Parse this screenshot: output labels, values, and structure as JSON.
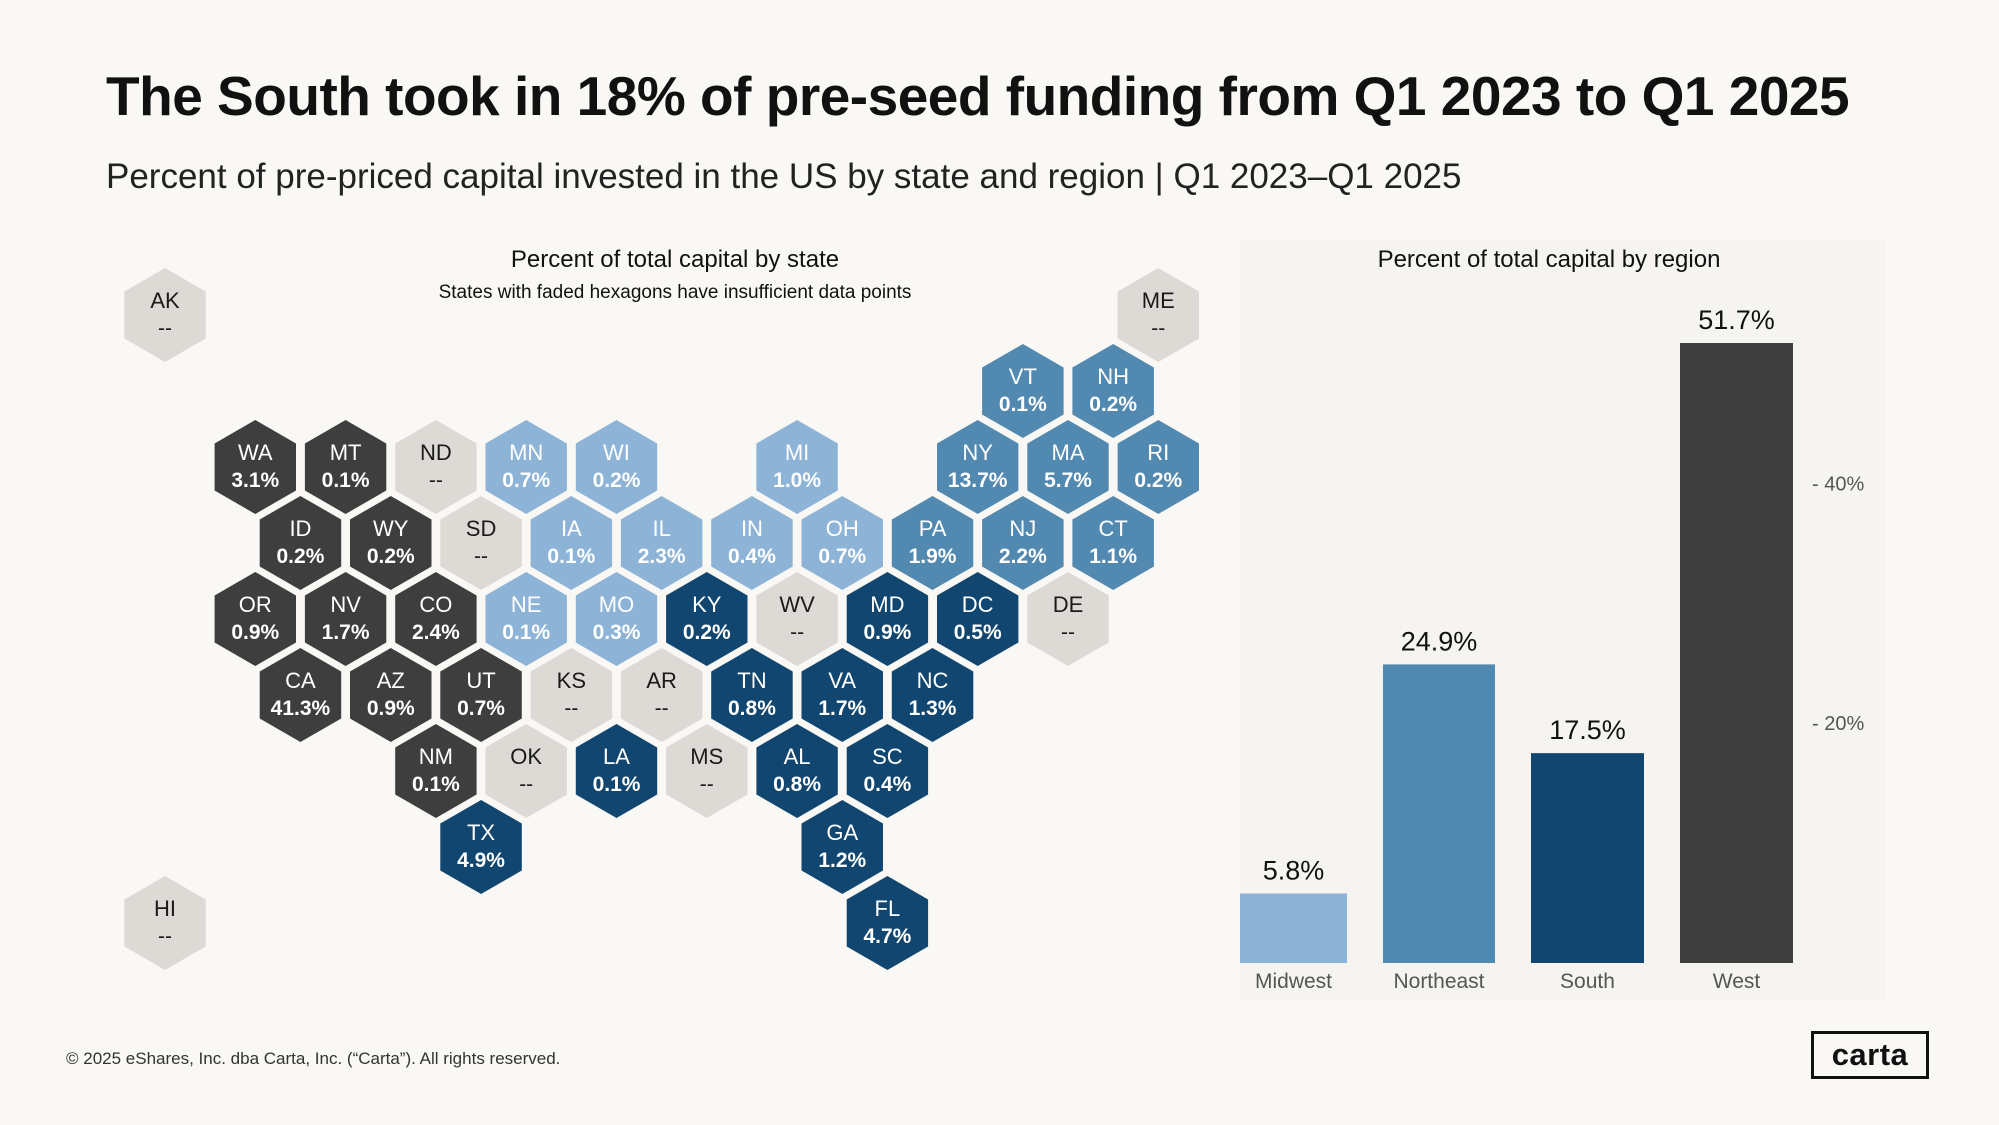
{
  "header": {
    "title": "The South took in 18% of pre-seed funding from Q1 2023 to Q1 2025",
    "subtitle": "Percent of pre-priced capital invested in the US by state and region | Q1 2023–Q1 2025"
  },
  "colors": {
    "West": "#3e3e3e",
    "Midwest": "#8db3d7",
    "Northeast": "#5289b1",
    "South": "#10466f",
    "Insufficient": "#dddad5",
    "background": "#faf8f4"
  },
  "footer": {
    "copyright": "© 2025 eShares, Inc. dba Carta, Inc. (“Carta”). All rights reserved.",
    "logo": "carta"
  },
  "chart_data": [
    {
      "type": "table",
      "title": "Percent of total capital by state",
      "subtitle": "States with faded hexagons have insufficient data points",
      "states": [
        {
          "abbr": "AK",
          "label": "--",
          "value": null,
          "region": "Insufficient",
          "row": 0,
          "col": 0
        },
        {
          "abbr": "ME",
          "label": "--",
          "value": null,
          "region": "Insufficient",
          "row": 0,
          "col": 11
        },
        {
          "abbr": "VT",
          "label": "0.1%",
          "value": 0.1,
          "region": "Northeast",
          "row": 1,
          "col": 9.5
        },
        {
          "abbr": "NH",
          "label": "0.2%",
          "value": 0.2,
          "region": "Northeast",
          "row": 1,
          "col": 10.5
        },
        {
          "abbr": "WA",
          "label": "3.1%",
          "value": 3.1,
          "region": "West",
          "row": 2,
          "col": 1
        },
        {
          "abbr": "MT",
          "label": "0.1%",
          "value": 0.1,
          "region": "West",
          "row": 2,
          "col": 2
        },
        {
          "abbr": "ND",
          "label": "--",
          "value": null,
          "region": "Insufficient",
          "row": 2,
          "col": 3
        },
        {
          "abbr": "MN",
          "label": "0.7%",
          "value": 0.7,
          "region": "Midwest",
          "row": 2,
          "col": 4
        },
        {
          "abbr": "WI",
          "label": "0.2%",
          "value": 0.2,
          "region": "Midwest",
          "row": 2,
          "col": 5
        },
        {
          "abbr": "MI",
          "label": "1.0%",
          "value": 1.0,
          "region": "Midwest",
          "row": 2,
          "col": 7
        },
        {
          "abbr": "NY",
          "label": "13.7%",
          "value": 13.7,
          "region": "Northeast",
          "row": 2,
          "col": 9
        },
        {
          "abbr": "MA",
          "label": "5.7%",
          "value": 5.7,
          "region": "Northeast",
          "row": 2,
          "col": 10
        },
        {
          "abbr": "RI",
          "label": "0.2%",
          "value": 0.2,
          "region": "Northeast",
          "row": 2,
          "col": 11
        },
        {
          "abbr": "ID",
          "label": "0.2%",
          "value": 0.2,
          "region": "West",
          "row": 3,
          "col": 1.5
        },
        {
          "abbr": "WY",
          "label": "0.2%",
          "value": 0.2,
          "region": "West",
          "row": 3,
          "col": 2.5
        },
        {
          "abbr": "SD",
          "label": "--",
          "value": null,
          "region": "Insufficient",
          "row": 3,
          "col": 3.5
        },
        {
          "abbr": "IA",
          "label": "0.1%",
          "value": 0.1,
          "region": "Midwest",
          "row": 3,
          "col": 4.5
        },
        {
          "abbr": "IL",
          "label": "2.3%",
          "value": 2.3,
          "region": "Midwest",
          "row": 3,
          "col": 5.5
        },
        {
          "abbr": "IN",
          "label": "0.4%",
          "value": 0.4,
          "region": "Midwest",
          "row": 3,
          "col": 6.5
        },
        {
          "abbr": "OH",
          "label": "0.7%",
          "value": 0.7,
          "region": "Midwest",
          "row": 3,
          "col": 7.5
        },
        {
          "abbr": "PA",
          "label": "1.9%",
          "value": 1.9,
          "region": "Northeast",
          "row": 3,
          "col": 8.5
        },
        {
          "abbr": "NJ",
          "label": "2.2%",
          "value": 2.2,
          "region": "Northeast",
          "row": 3,
          "col": 9.5
        },
        {
          "abbr": "CT",
          "label": "1.1%",
          "value": 1.1,
          "region": "Northeast",
          "row": 3,
          "col": 10.5
        },
        {
          "abbr": "OR",
          "label": "0.9%",
          "value": 0.9,
          "region": "West",
          "row": 4,
          "col": 1
        },
        {
          "abbr": "NV",
          "label": "1.7%",
          "value": 1.7,
          "region": "West",
          "row": 4,
          "col": 2
        },
        {
          "abbr": "CO",
          "label": "2.4%",
          "value": 2.4,
          "region": "West",
          "row": 4,
          "col": 3
        },
        {
          "abbr": "NE",
          "label": "0.1%",
          "value": 0.1,
          "region": "Midwest",
          "row": 4,
          "col": 4
        },
        {
          "abbr": "MO",
          "label": "0.3%",
          "value": 0.3,
          "region": "Midwest",
          "row": 4,
          "col": 5
        },
        {
          "abbr": "KY",
          "label": "0.2%",
          "value": 0.2,
          "region": "South",
          "row": 4,
          "col": 6
        },
        {
          "abbr": "WV",
          "label": "--",
          "value": null,
          "region": "Insufficient",
          "row": 4,
          "col": 7
        },
        {
          "abbr": "MD",
          "label": "0.9%",
          "value": 0.9,
          "region": "South",
          "row": 4,
          "col": 8
        },
        {
          "abbr": "DC",
          "label": "0.5%",
          "value": 0.5,
          "region": "South",
          "row": 4,
          "col": 9
        },
        {
          "abbr": "DE",
          "label": "--",
          "value": null,
          "region": "Insufficient",
          "row": 4,
          "col": 10
        },
        {
          "abbr": "CA",
          "label": "41.3%",
          "value": 41.3,
          "region": "West",
          "row": 5,
          "col": 1.5
        },
        {
          "abbr": "AZ",
          "label": "0.9%",
          "value": 0.9,
          "region": "West",
          "row": 5,
          "col": 2.5
        },
        {
          "abbr": "UT",
          "label": "0.7%",
          "value": 0.7,
          "region": "West",
          "row": 5,
          "col": 3.5
        },
        {
          "abbr": "KS",
          "label": "--",
          "value": null,
          "region": "Insufficient",
          "row": 5,
          "col": 4.5
        },
        {
          "abbr": "AR",
          "label": "--",
          "value": null,
          "region": "Insufficient",
          "row": 5,
          "col": 5.5
        },
        {
          "abbr": "TN",
          "label": "0.8%",
          "value": 0.8,
          "region": "South",
          "row": 5,
          "col": 6.5
        },
        {
          "abbr": "VA",
          "label": "1.7%",
          "value": 1.7,
          "region": "South",
          "row": 5,
          "col": 7.5
        },
        {
          "abbr": "NC",
          "label": "1.3%",
          "value": 1.3,
          "region": "South",
          "row": 5,
          "col": 8.5
        },
        {
          "abbr": "NM",
          "label": "0.1%",
          "value": 0.1,
          "region": "West",
          "row": 6,
          "col": 3
        },
        {
          "abbr": "OK",
          "label": "--",
          "value": null,
          "region": "Insufficient",
          "row": 6,
          "col": 4
        },
        {
          "abbr": "LA",
          "label": "0.1%",
          "value": 0.1,
          "region": "South",
          "row": 6,
          "col": 5
        },
        {
          "abbr": "MS",
          "label": "--",
          "value": null,
          "region": "Insufficient",
          "row": 6,
          "col": 6
        },
        {
          "abbr": "AL",
          "label": "0.8%",
          "value": 0.8,
          "region": "South",
          "row": 6,
          "col": 7
        },
        {
          "abbr": "SC",
          "label": "0.4%",
          "value": 0.4,
          "region": "South",
          "row": 6,
          "col": 8
        },
        {
          "abbr": "TX",
          "label": "4.9%",
          "value": 4.9,
          "region": "South",
          "row": 7,
          "col": 3.5
        },
        {
          "abbr": "GA",
          "label": "1.2%",
          "value": 1.2,
          "region": "South",
          "row": 7,
          "col": 7.5
        },
        {
          "abbr": "HI",
          "label": "--",
          "value": null,
          "region": "Insufficient",
          "row": 8,
          "col": 0
        },
        {
          "abbr": "FL",
          "label": "4.7%",
          "value": 4.7,
          "region": "South",
          "row": 8,
          "col": 8
        }
      ]
    },
    {
      "type": "bar",
      "title": "Percent of total capital by region",
      "categories": [
        "Midwest",
        "Northeast",
        "South",
        "West"
      ],
      "values": [
        5.8,
        24.9,
        17.5,
        51.7
      ],
      "value_labels": [
        "5.8%",
        "24.9%",
        "17.5%",
        "51.7%"
      ],
      "yticks": [
        20,
        40
      ],
      "ytick_labels": [
        "- 20%",
        "- 40%"
      ],
      "ylim": [
        0,
        51.7
      ],
      "grid": false,
      "legend": "none"
    }
  ]
}
